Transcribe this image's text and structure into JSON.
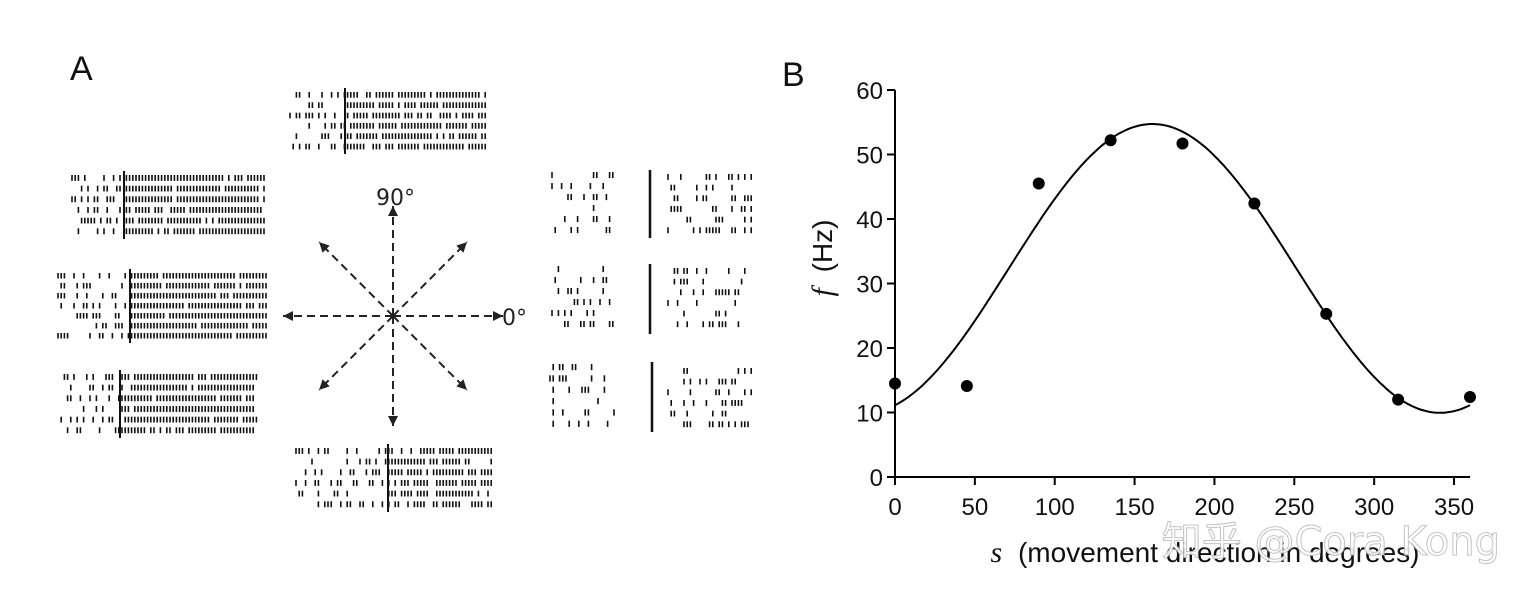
{
  "panels": {
    "a_label": "A",
    "b_label": "B"
  },
  "panel_a": {
    "label_90": "90°",
    "label_0": "0°",
    "arrow_directions_deg": [
      0,
      45,
      90,
      135,
      180,
      225,
      270,
      315
    ]
  },
  "watermark": "知乎 @Cora Kong",
  "chart_data": {
    "type": "scatter",
    "title": "",
    "xlabel_var": "s",
    "xlabel_text": "(movement direction in degrees)",
    "ylabel_var": "f",
    "ylabel_text": "(Hz)",
    "xlim": [
      0,
      360
    ],
    "ylim": [
      0,
      60
    ],
    "xticks": [
      0,
      50,
      100,
      150,
      200,
      250,
      300,
      350
    ],
    "yticks": [
      0,
      10,
      20,
      30,
      40,
      50,
      60
    ],
    "grid": false,
    "points": [
      {
        "x": 0,
        "y": 14.5
      },
      {
        "x": 45,
        "y": 14.1
      },
      {
        "x": 90,
        "y": 45.5
      },
      {
        "x": 135,
        "y": 52.2
      },
      {
        "x": 180,
        "y": 51.7
      },
      {
        "x": 225,
        "y": 42.4
      },
      {
        "x": 270,
        "y": 25.3
      },
      {
        "x": 315,
        "y": 12.0
      },
      {
        "x": 360,
        "y": 12.4
      }
    ],
    "fit": {
      "type": "cosine",
      "baseline": 32.34,
      "amplitude": 22.39,
      "preferred_direction_deg": 161.25
    },
    "colors": {
      "marker": "#000000",
      "line": "#000000"
    }
  }
}
